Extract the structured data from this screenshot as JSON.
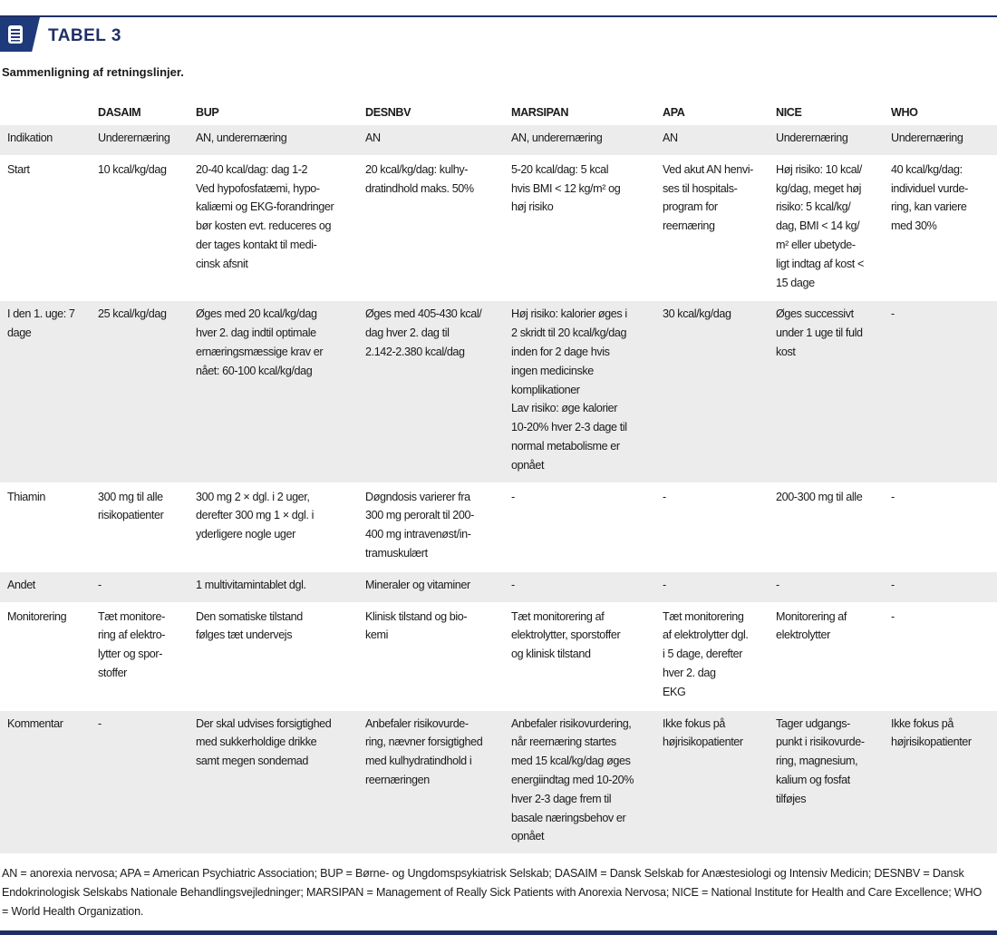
{
  "header": {
    "title": "TABEL 3",
    "subtitle": "Sammenligning af retningslinjer.",
    "icon": "document-list-icon"
  },
  "table": {
    "columns": [
      "",
      "DASAIM",
      "BUP",
      "DESNBV",
      "MARSIPAN",
      "APA",
      "NICE",
      "WHO"
    ],
    "rows": [
      {
        "label": "Indikation",
        "cells": [
          "Underernæring",
          "AN, underernæring",
          "AN",
          "AN, underernæring",
          "AN",
          "Underernæring",
          "Underernæring"
        ]
      },
      {
        "label": "Start",
        "cells": [
          "10 kcal/kg/dag",
          "20-40 kcal/dag: dag 1-2\nVed hypofosfatæmi, hypo-\nkaliæmi og EKG-forandringer\nbør kosten evt. reduceres og\nder tages kontakt til medi-\ncinsk afsnit",
          "20 kcal/kg/dag: kulhy-\ndratindhold maks. 50%",
          "5-20 kcal/dag: 5 kcal\nhvis BMI < 12 kg/m² og\nhøj risiko",
          "Ved akut AN henvi-\nses til hospitals-\nprogram for\nreernæring",
          "Høj risiko: 10 kcal/\nkg/dag, meget høj\nrisiko: 5 kcal/kg/\ndag, BMI < 14 kg/\nm² eller ubetyde-\nligt indtag af kost <\n15 dage",
          "40 kcal/kg/dag:\nindividuel vurde-\nring, kan variere\nmed 30%"
        ]
      },
      {
        "label": "I den 1. uge: 7\ndage",
        "cells": [
          "25 kcal/kg/dag",
          "Øges med 20 kcal/kg/dag\nhver 2. dag indtil optimale\nernæringsmæssige krav er\nnået: 60-100 kcal/kg/dag",
          "Øges med 405-430 kcal/\ndag hver 2. dag til\n2.142-2.380 kcal/dag",
          "Høj risiko: kalorier øges i\n2 skridt til 20 kcal/kg/dag\ninden for 2 dage hvis\ningen medicinske\nkomplikationer\nLav risiko: øge kalorier\n10-20% hver 2-3 dage til\nnormal metabolisme er\nopnået",
          "30 kcal/kg/dag",
          "Øges successivt\nunder 1 uge til fuld\nkost",
          "-"
        ]
      },
      {
        "label": "Thiamin",
        "cells": [
          "300 mg til alle\nrisikopatienter",
          "300 mg 2 × dgl. i 2 uger,\nderefter 300 mg 1 × dgl. i\nyderligere nogle uger",
          "Døgndosis varierer fra\n300 mg peroralt til 200-\n400 mg intravenøst/in-\ntramuskulært",
          "-",
          "-",
          "200-300 mg til alle",
          "-"
        ]
      },
      {
        "label": "Andet",
        "cells": [
          "-",
          "1 multivitamintablet dgl.",
          "Mineraler og vitaminer",
          "-",
          "-",
          "-",
          "-"
        ]
      },
      {
        "label": "Monitorering",
        "cells": [
          "Tæt monitore-\nring af elektro-\nlytter og spor-\nstoffer",
          "Den somatiske tilstand\nfølges tæt undervejs",
          "Klinisk tilstand og bio-\nkemi",
          "Tæt monitorering af\nelektrolytter, sporstoffer\nog klinisk tilstand",
          "Tæt monitorering\naf elektrolytter dgl.\ni 5 dage, derefter\nhver 2. dag\nEKG",
          "Monitorering af\nelektrolytter",
          "-"
        ]
      },
      {
        "label": "Kommentar",
        "cells": [
          "-",
          "Der skal udvises forsigtighed\nmed sukkerholdige drikke\nsamt megen sondemad",
          "Anbefaler risikovurde-\nring, nævner forsigtighed\nmed kulhydratindhold i\nreernæringen",
          "Anbefaler risikovurdering,\nnår reernæring startes\nmed 15 kcal/kg/dag øges\nenergiindtag med 10-20%\nhver 2-3 dage frem til\nbasale næringsbehov er\nopnået",
          "Ikke fokus på\nhøjrisikopatienter",
          "Tager udgangs-\npunkt i risikovurde-\nring, magnesium,\nkalium og fosfat\ntilføjes",
          "Ikke fokus på\nhøjrisikopatienter"
        ]
      }
    ]
  },
  "footnote": "AN = anorexia nervosa; APA = American Psychiatric Association; BUP = Børne- og Ungdomspsykiatrisk Selskab; DASAIM = Dansk Selskab for Anæstesiologi og Intensiv Medicin; DESNBV = Dansk Endokrinologisk Selskabs Nationale Behandlingsvejledninger; MARSIPAN = Management of Really Sick Patients with Anorexia Nervosa; NICE = National Institute for Health and Care Excellence; WHO = World Health Organization.",
  "colors": {
    "navy": "#1f2f66",
    "badge": "#1f3a7a",
    "row_shade": "#ececec"
  }
}
